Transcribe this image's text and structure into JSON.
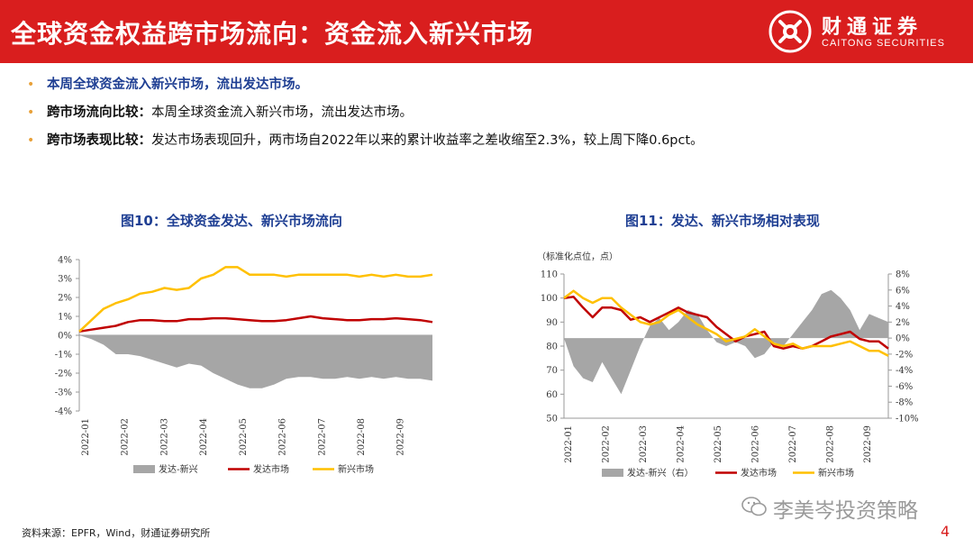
{
  "header": {
    "title": "全球资金权益跨市场流向：资金流入新兴市场",
    "brand_cn": "财通证券",
    "brand_en": "CAITONG SECURITIES",
    "bg_color": "#d91e1e"
  },
  "bullets": [
    {
      "text": "本周全球资金流入新兴市场，流出发达市场。"
    },
    {
      "label": "跨市场流向比较：",
      "text": "本周全球资金流入新兴市场，流出发达市场。"
    },
    {
      "label": "跨市场表现比较：",
      "text": "发达市场表现回升，两市场自2022年以来的累计收益率之差收缩至2.3%，较上周下降0.6pct。"
    }
  ],
  "footer": {
    "source": "资料来源：EPFR，Wind，财通证券研究所",
    "watermark": "李美岑投资策略",
    "page_number": "4"
  },
  "chart_data": [
    {
      "type": "area+line",
      "title": "图10：全球资金发达、新兴市场流向",
      "yaxis": {
        "min": -4,
        "max": 4,
        "step": 1,
        "suffix": "%"
      },
      "x_labels": [
        "2022-01",
        "2022-02",
        "2022-03",
        "2022-04",
        "2022-05",
        "2022-06",
        "2022-07",
        "2022-08",
        "2022-09"
      ],
      "series": [
        {
          "name": "发达-新兴",
          "kind": "area",
          "color": "#a6a6a6",
          "values": [
            0.0,
            -0.2,
            -0.5,
            -1.0,
            -1.0,
            -1.1,
            -1.3,
            -1.5,
            -1.7,
            -1.5,
            -1.6,
            -2.0,
            -2.3,
            -2.6,
            -2.8,
            -2.8,
            -2.6,
            -2.3,
            -2.2,
            -2.2,
            -2.3,
            -2.3,
            -2.2,
            -2.3,
            -2.2,
            -2.3,
            -2.2,
            -2.3,
            -2.3,
            -2.4
          ]
        },
        {
          "name": "发达市场",
          "kind": "line",
          "color": "#c00000",
          "values": [
            0.2,
            0.3,
            0.4,
            0.5,
            0.7,
            0.8,
            0.8,
            0.75,
            0.75,
            0.85,
            0.85,
            0.9,
            0.9,
            0.85,
            0.8,
            0.75,
            0.75,
            0.8,
            0.9,
            1.0,
            0.9,
            0.85,
            0.8,
            0.8,
            0.85,
            0.85,
            0.9,
            0.85,
            0.8,
            0.7
          ]
        },
        {
          "name": "新兴市场",
          "kind": "line",
          "color": "#ffc000",
          "values": [
            0.2,
            0.8,
            1.4,
            1.7,
            1.9,
            2.2,
            2.3,
            2.5,
            2.4,
            2.5,
            3.0,
            3.2,
            3.6,
            3.6,
            3.2,
            3.2,
            3.2,
            3.1,
            3.2,
            3.2,
            3.2,
            3.2,
            3.2,
            3.1,
            3.2,
            3.1,
            3.2,
            3.1,
            3.1,
            3.2
          ]
        }
      ]
    },
    {
      "type": "area+line",
      "title": "图11：发达、新兴市场相对表现",
      "unit": "（标准化点位，点）",
      "left_axis": {
        "min": 50,
        "max": 110,
        "step": 10
      },
      "right_axis": {
        "min": -10,
        "max": 8,
        "step": 2,
        "suffix": "%"
      },
      "x_labels": [
        "2022-01",
        "2022-02",
        "2022-03",
        "2022-04",
        "2022-05",
        "2022-06",
        "2022-07",
        "2022-08",
        "2022-09"
      ],
      "series": [
        {
          "name": "发达-新兴（右）",
          "kind": "area",
          "axis": "right",
          "color": "#a6a6a6",
          "values": [
            0,
            -3.5,
            -5.0,
            -5.5,
            -3.0,
            -5.0,
            -7.0,
            -4.0,
            -1.0,
            1.5,
            2.5,
            1.0,
            2.0,
            3.5,
            3.0,
            1.0,
            -0.5,
            -1.0,
            -0.5,
            -1.0,
            -2.5,
            -2.0,
            -0.5,
            -1.0,
            0.5,
            2.0,
            3.5,
            5.5,
            6.0,
            5.0,
            3.5,
            1.0,
            3.0,
            2.5,
            2.0
          ]
        },
        {
          "name": "发达市场",
          "kind": "line",
          "axis": "left",
          "color": "#c00000",
          "values": [
            100,
            100.5,
            96,
            92,
            96,
            96,
            95,
            91,
            92,
            90,
            92,
            94,
            96,
            94,
            93,
            92,
            88,
            85,
            82,
            84,
            85,
            86,
            80,
            79,
            80,
            79,
            80,
            82,
            84,
            85,
            86,
            83,
            82,
            82,
            79
          ]
        },
        {
          "name": "新兴市场",
          "kind": "line",
          "axis": "left",
          "color": "#ffc000",
          "values": [
            100,
            103,
            100,
            98,
            100,
            100,
            96,
            93,
            90,
            89,
            90,
            93,
            95,
            92,
            89,
            87,
            85,
            82,
            83,
            84,
            87,
            84,
            81,
            80,
            81,
            79,
            80,
            80,
            80,
            81,
            82,
            80,
            78,
            78,
            76
          ]
        }
      ]
    }
  ]
}
